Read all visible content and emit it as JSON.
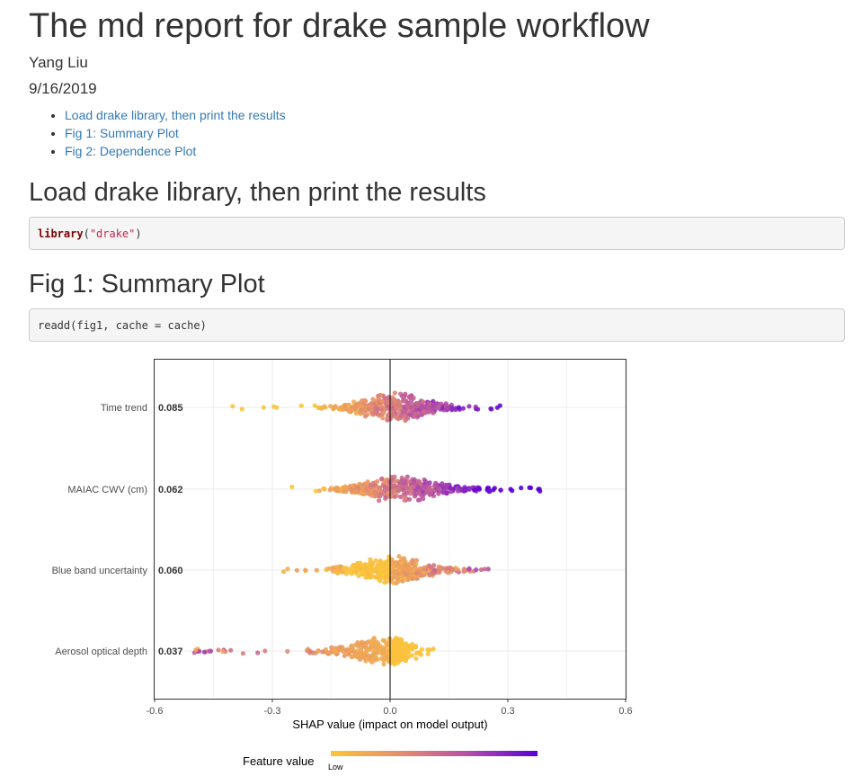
{
  "document": {
    "title": "The md report for drake sample workflow",
    "author": "Yang Liu",
    "date": "9/16/2019",
    "toc": [
      "Load drake library, then print the results",
      "Fig 1: Summary Plot",
      "Fig 2: Dependence Plot"
    ]
  },
  "sections": {
    "load": {
      "heading": "Load drake library, then print the results",
      "code_fn": "library",
      "code_open": "(",
      "code_str": "\"drake\"",
      "code_close": ")"
    },
    "fig1": {
      "heading": "Fig 1: Summary Plot",
      "code": "readd(fig1, cache = cache)"
    }
  },
  "chart_data": {
    "type": "scatter",
    "subtype": "shap-beeswarm-summary",
    "xlabel": "SHAP value (impact on model output)",
    "xlim": [
      -0.6,
      0.6
    ],
    "x_ticks": [
      "-0.6",
      "-0.3",
      "0.0",
      "0.3",
      "0.6"
    ],
    "x_tick_values": [
      -0.6,
      -0.3,
      0.0,
      0.3,
      0.6
    ],
    "reference_line_x": 0,
    "grid": true,
    "features": [
      {
        "name": "Time trend",
        "mean_abs_shap": "0.085",
        "shap_range": [
          -0.41,
          0.32
        ],
        "main_mass": [
          -0.2,
          0.2
        ],
        "median_negative": -0.04,
        "median_positive": 0.06
      },
      {
        "name": "MAIAC CWV (cm)",
        "mean_abs_shap": "0.062",
        "shap_range": [
          -0.27,
          0.4
        ],
        "main_mass": [
          -0.18,
          0.28
        ],
        "median_negative": -0.04,
        "median_positive": 0.1
      },
      {
        "name": "Blue band uncertainty",
        "mean_abs_shap": "0.060",
        "shap_range": [
          -0.3,
          0.25
        ],
        "main_mass": [
          -0.17,
          0.22
        ],
        "median_negative": -0.03,
        "median_positive": 0.05
      },
      {
        "name": "Aerosol optical depth",
        "mean_abs_shap": "0.037",
        "shap_range": [
          -0.5,
          0.12
        ],
        "main_mass": [
          -0.22,
          0.05
        ],
        "median_negative": -0.05,
        "median_positive": 0.02
      }
    ],
    "legend": {
      "title": "Feature value",
      "low_label": "Low",
      "position": "bottom",
      "colors": [
        "#fbc53a",
        "#e6906a",
        "#b550a8",
        "#5b00d6"
      ]
    }
  }
}
